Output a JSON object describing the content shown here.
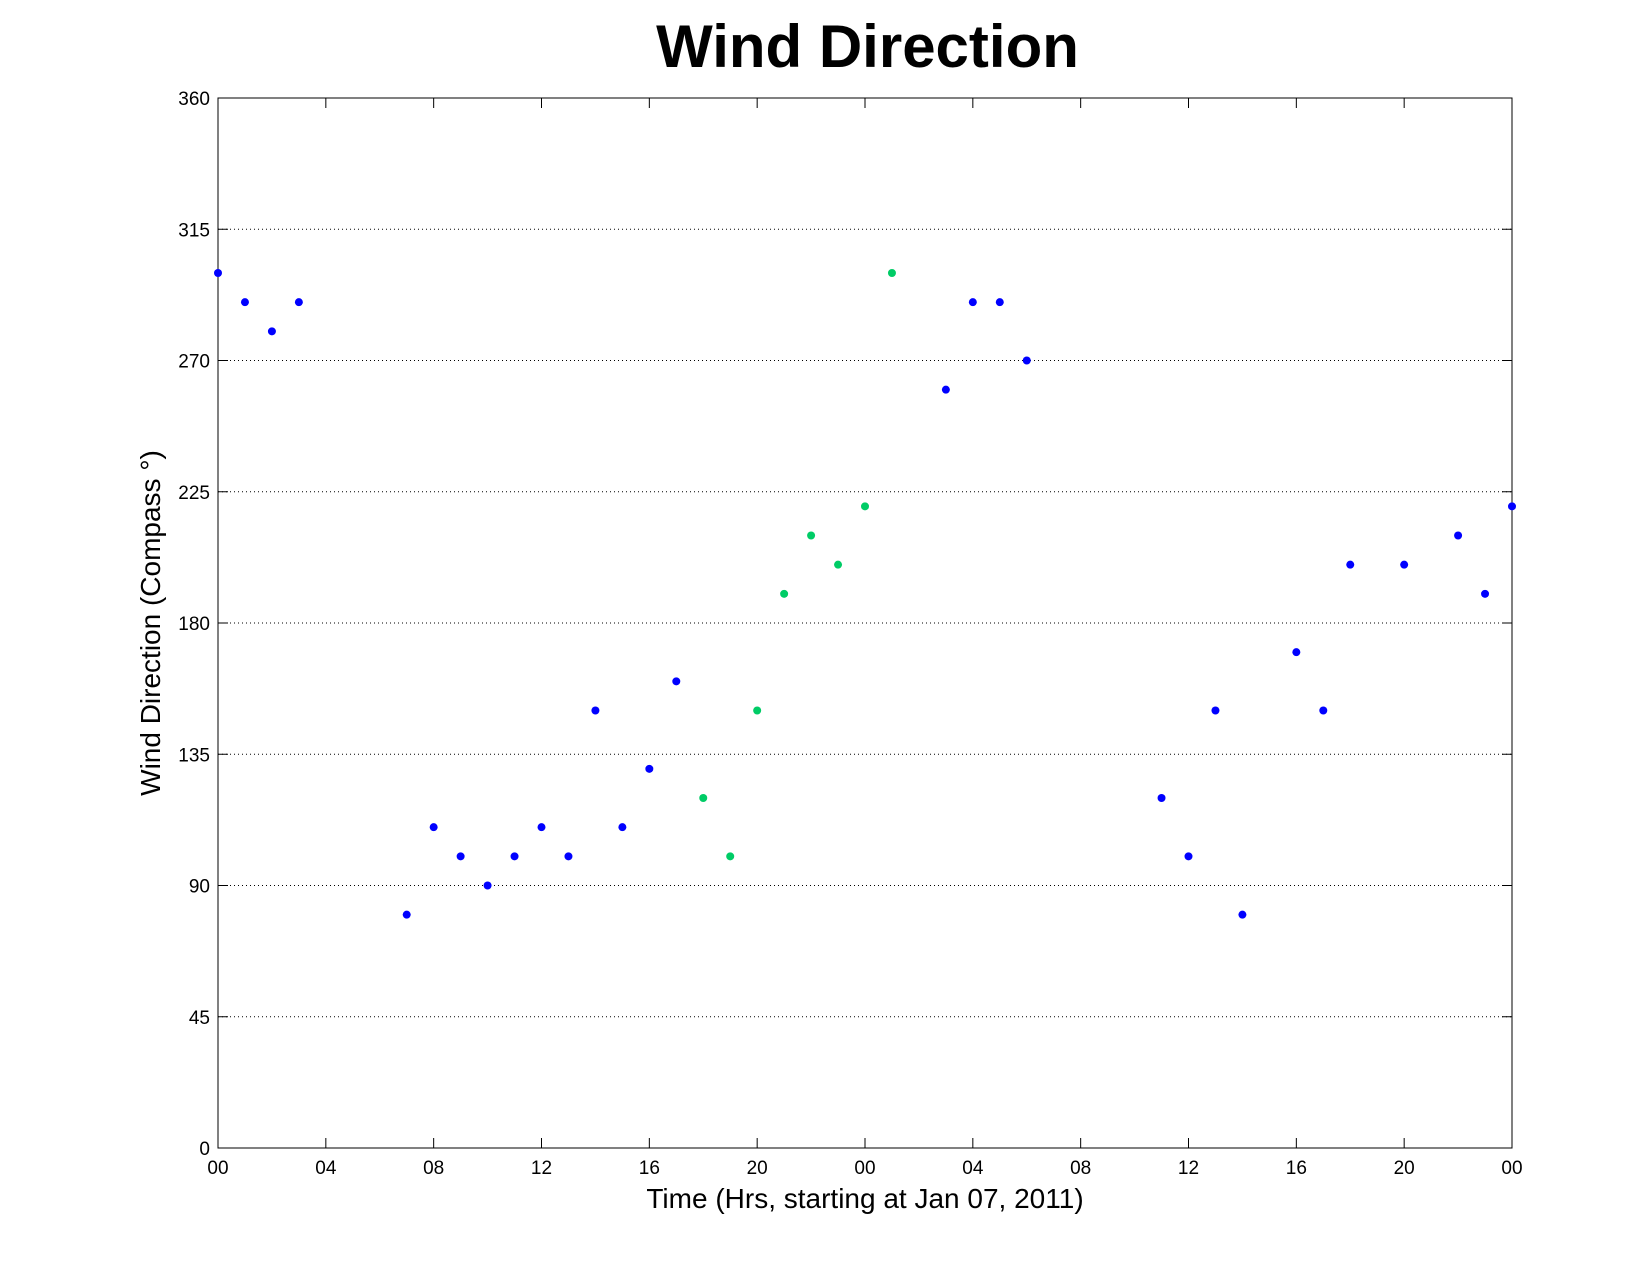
{
  "chart_data": {
    "type": "scatter",
    "title": "Wind Direction",
    "xlabel": "Time (Hrs, starting at Jan 07, 2011)",
    "ylabel": "Wind Direction (Compass  °)",
    "xlim": [
      0,
      48
    ],
    "ylim": [
      0,
      360
    ],
    "xticks": [
      0,
      4,
      8,
      12,
      16,
      20,
      24,
      28,
      32,
      36,
      40,
      44,
      48
    ],
    "xtick_labels": [
      "00",
      "04",
      "08",
      "12",
      "16",
      "20",
      "00",
      "04",
      "08",
      "12",
      "16",
      "20",
      "00"
    ],
    "yticks": [
      0,
      45,
      90,
      135,
      180,
      225,
      270,
      315,
      360
    ],
    "ytick_labels": [
      "0",
      "45",
      "90",
      "135",
      "180",
      "225",
      "270",
      "315",
      "360"
    ],
    "grid": "horizontal dotted",
    "series": [
      {
        "color": "#0000ff",
        "points": [
          [
            0,
            300
          ],
          [
            1,
            290
          ],
          [
            2,
            280
          ],
          [
            3,
            290
          ],
          [
            7,
            80
          ],
          [
            8,
            110
          ],
          [
            9,
            100
          ],
          [
            10,
            90
          ],
          [
            11,
            100
          ],
          [
            12,
            110
          ],
          [
            13,
            100
          ],
          [
            14,
            150
          ],
          [
            15,
            110
          ],
          [
            16,
            130
          ],
          [
            17,
            160
          ],
          [
            27,
            260
          ],
          [
            28,
            290
          ],
          [
            29,
            290
          ],
          [
            30,
            270
          ],
          [
            35,
            120
          ],
          [
            36,
            100
          ],
          [
            37,
            150
          ],
          [
            38,
            80
          ],
          [
            40,
            170
          ],
          [
            41,
            150
          ],
          [
            42,
            200
          ],
          [
            44,
            200
          ],
          [
            46,
            210
          ],
          [
            47,
            190
          ],
          [
            48,
            220
          ]
        ]
      },
      {
        "color": "#00cc66",
        "points": [
          [
            18,
            120
          ],
          [
            19,
            100
          ],
          [
            20,
            150
          ],
          [
            21,
            190
          ],
          [
            22,
            210
          ],
          [
            23,
            200
          ],
          [
            24,
            220
          ],
          [
            25,
            300
          ]
        ]
      }
    ]
  }
}
